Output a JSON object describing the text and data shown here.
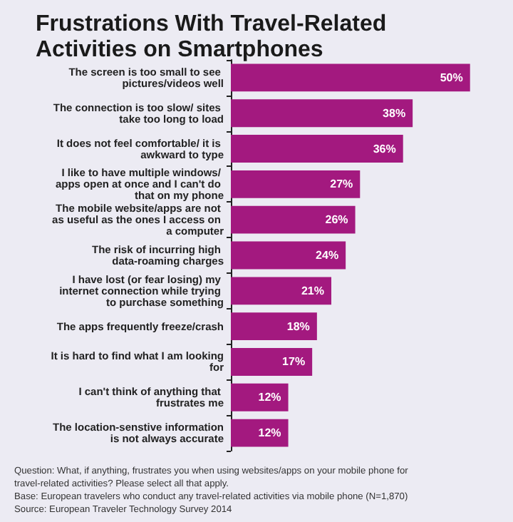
{
  "chart_data": {
    "type": "bar",
    "orientation": "horizontal",
    "title": "Frustrations With Travel-Related Activities on Smartphones",
    "categories": [
      "The screen is too small to see pictures/videos well",
      "The connection is too slow/ sites take too long to load",
      "It does not feel comfortable/ it is awkward to type",
      "I like to have multiple windows/ apps open at once and I can't do that on my phone",
      "The mobile website/apps are not as useful as the ones I access on a computer",
      "The risk of incurring high data-roaming charges",
      "I have lost (or fear losing) my internet connection while trying to purchase something",
      "The apps frequently freeze/crash",
      "It is hard to find what I am looking for",
      "I can't think of anything that frustrates me",
      "The location-senstive information is not always accurate"
    ],
    "values": [
      50,
      38,
      36,
      27,
      26,
      24,
      21,
      18,
      17,
      12,
      12
    ],
    "value_labels": [
      "50%",
      "38%",
      "36%",
      "27%",
      "26%",
      "24%",
      "21%",
      "18%",
      "17%",
      "12%",
      "12%"
    ],
    "color": "#a3197f",
    "annotations": [
      "Question: What, if anything, frustrates you when using websites/apps on your mobile phone for travel-related activities? Please select all that apply.",
      "Base: European travelers who conduct any travel-related activities via mobile phone (N=1,870)",
      "Source: European Traveler Technology Survey 2014"
    ]
  }
}
